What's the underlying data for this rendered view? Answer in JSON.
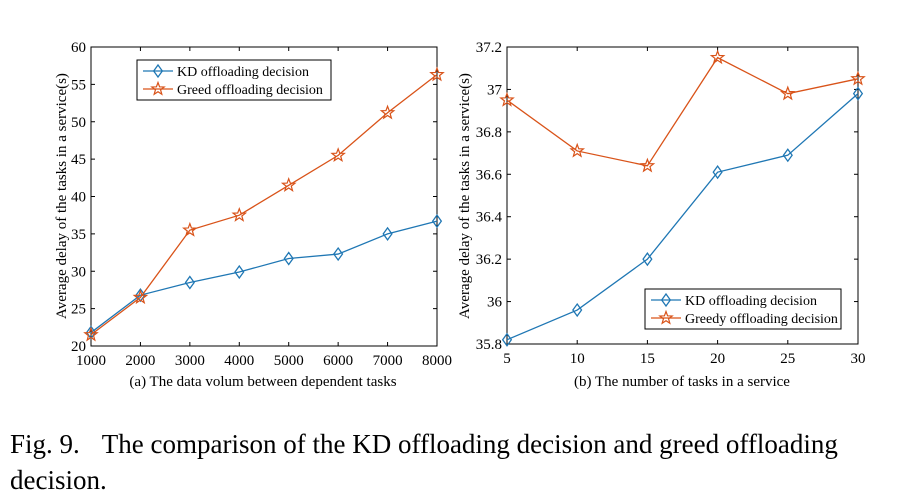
{
  "caption": {
    "label": "Fig. 9.",
    "text": "The comparison of the KD offloading decision and greed offloading decision."
  },
  "colors": {
    "series_blue": "#1f77b4",
    "series_orange": "#d95319"
  },
  "chart_data": [
    {
      "type": "line",
      "title": "",
      "xlabel": "(a) The data volum between dependent tasks",
      "ylabel": "Average delay of the tasks in a service(s)",
      "x": [
        1000,
        2000,
        3000,
        4000,
        5000,
        6000,
        7000,
        8000
      ],
      "xlim": [
        1000,
        8000
      ],
      "ylim": [
        20,
        60
      ],
      "yticks": [
        20,
        25,
        30,
        35,
        40,
        45,
        50,
        55,
        60
      ],
      "ytick_labels": [
        "20",
        "25",
        "30",
        "35",
        "40",
        "45",
        "50",
        "55",
        "60"
      ],
      "xtick_labels": [
        "1000",
        "2000",
        "3000",
        "4000",
        "5000",
        "6000",
        "7000",
        "8000"
      ],
      "grid": false,
      "legend_position": "top-center",
      "series": [
        {
          "name": "KD offloading decision",
          "marker": "diamond",
          "color": "#1f77b4",
          "values": [
            21.8,
            26.8,
            28.5,
            29.9,
            31.7,
            32.3,
            35.0,
            36.7
          ]
        },
        {
          "name": "Greed offloading decision",
          "marker": "star",
          "color": "#d95319",
          "values": [
            21.5,
            26.5,
            35.5,
            37.5,
            41.5,
            45.5,
            51.2,
            56.3
          ]
        }
      ]
    },
    {
      "type": "line",
      "title": "",
      "xlabel": "(b) The number of tasks in a service",
      "ylabel": "Average delay of the tasks in a service(s)",
      "x": [
        5,
        10,
        15,
        20,
        25,
        30
      ],
      "xlim": [
        5,
        30
      ],
      "ylim": [
        35.8,
        37.2
      ],
      "yticks": [
        35.8,
        36,
        36.2,
        36.4,
        36.6,
        36.8,
        37,
        37.2
      ],
      "ytick_labels": [
        "35.8",
        "36",
        "36.2",
        "36.4",
        "36.6",
        "36.8",
        "37",
        "37.2"
      ],
      "xtick_labels": [
        "5",
        "10",
        "15",
        "20",
        "25",
        "30"
      ],
      "grid": false,
      "legend_position": "bottom-right",
      "series": [
        {
          "name": "KD offloading decision",
          "marker": "diamond",
          "color": "#1f77b4",
          "values": [
            35.82,
            35.96,
            36.2,
            36.61,
            36.69,
            36.98
          ]
        },
        {
          "name": "Greedy offloading decision",
          "marker": "star",
          "color": "#d95319",
          "values": [
            36.95,
            36.71,
            36.64,
            37.15,
            36.98,
            37.05
          ]
        }
      ]
    }
  ]
}
